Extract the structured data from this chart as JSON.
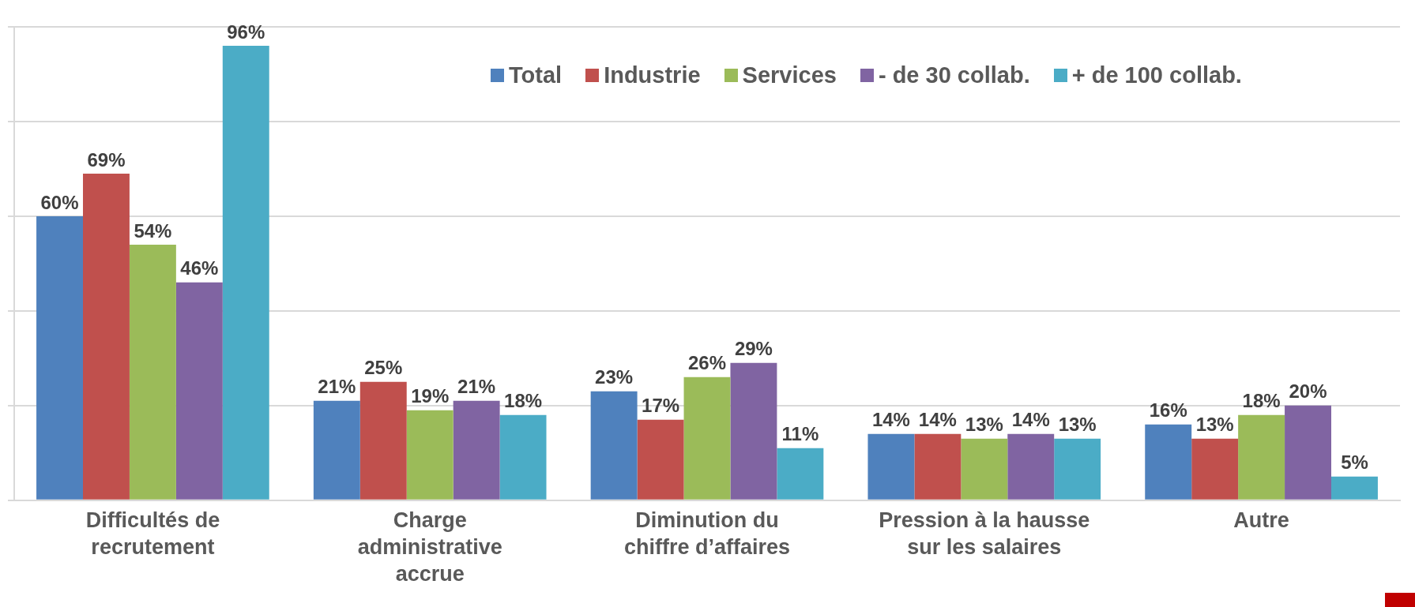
{
  "chart_data": {
    "type": "bar",
    "categories": [
      "Difficultés de recrutement",
      "Charge administrative accrue",
      "Diminution du chiffre d’affaires",
      "Pression à la hausse sur les salaires",
      "Autre"
    ],
    "series": [
      {
        "name": "Total",
        "color": "#4f81bd",
        "values": [
          60,
          21,
          23,
          14,
          16
        ],
        "value_labels": [
          "60%",
          "21%",
          "23%",
          "14%",
          "16%"
        ]
      },
      {
        "name": "Industrie",
        "color": "#c0504d",
        "values": [
          69,
          25,
          17,
          14,
          13
        ],
        "value_labels": [
          "69%",
          "25%",
          "17%",
          "14%",
          "13%"
        ]
      },
      {
        "name": "Services",
        "color": "#9bbb59",
        "values": [
          54,
          19,
          26,
          13,
          18
        ],
        "value_labels": [
          "54%",
          "19%",
          "26%",
          "13%",
          "18%"
        ]
      },
      {
        "name": "- de 30 collab.",
        "color": "#8064a2",
        "values": [
          46,
          21,
          29,
          14,
          20
        ],
        "value_labels": [
          "46%",
          "21%",
          "29%",
          "14%",
          "20%"
        ]
      },
      {
        "name": "+ de 100 collab.",
        "color": "#4bacc6",
        "values": [
          96,
          18,
          11,
          13,
          5
        ],
        "value_labels": [
          "96%",
          "18%",
          "11%",
          "13%",
          "5%"
        ]
      }
    ],
    "ylim": [
      0,
      100
    ],
    "yticks": [
      {
        "value": 0,
        "label": null
      },
      {
        "value": 20,
        "label": null
      },
      {
        "value": 40,
        "label": null
      },
      {
        "value": 60,
        "label": null
      },
      {
        "value": 80,
        "label": null
      },
      {
        "value": 100,
        "label": null
      }
    ],
    "grid": "y",
    "legend": "top right",
    "tick_labels": "x"
  }
}
